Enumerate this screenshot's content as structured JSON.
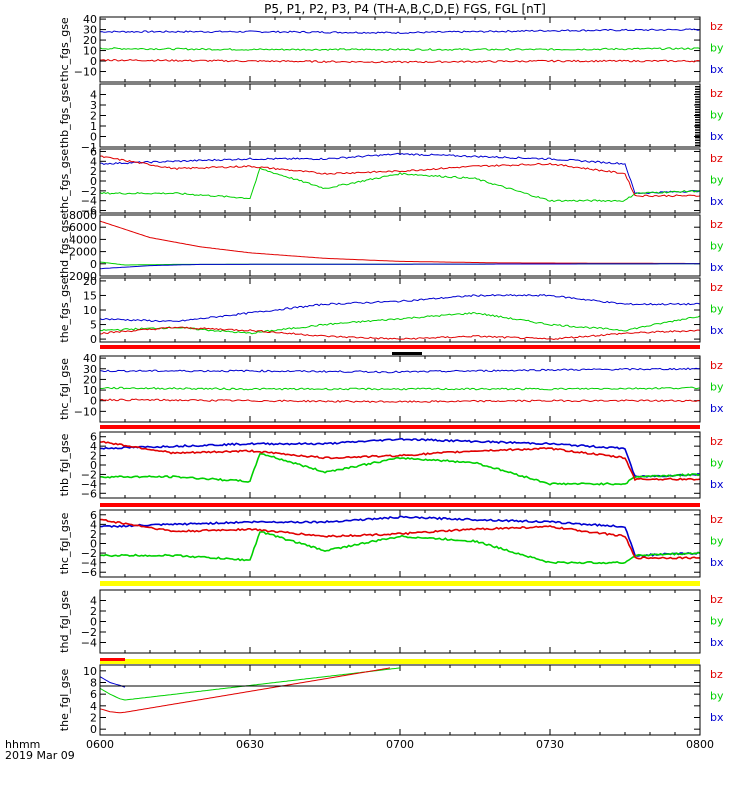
{
  "title": "P5, P1, P2, P3, P4 (TH-A,B,C,D,E) FGS, FGL [nT]",
  "footer": {
    "label1": "hhmm",
    "label2": "2019 Mar 09"
  },
  "x_ticks": [
    "0600",
    "0630",
    "0700",
    "0730",
    "0800"
  ],
  "colors": {
    "bz": "#e00000",
    "by": "#00d000",
    "bx": "#0000d0",
    "status_red": "#ff0000",
    "status_yellow": "#ffff00",
    "status_black": "#000000"
  },
  "chart_data": [
    {
      "type": "line",
      "panel": "thc_fgs_gse",
      "ylabel": "thc_fgs_gse",
      "xlim": [
        "06:00",
        "08:00"
      ],
      "ylim": [
        -20,
        42
      ],
      "yticks": [
        "40",
        "30",
        "20",
        "10",
        "0",
        "−10"
      ],
      "ytick_values": [
        40,
        30,
        20,
        10,
        0,
        -10
      ],
      "legend": [
        "bz",
        "by",
        "bx"
      ],
      "series": [
        {
          "name": "bx",
          "x": [
            "06:00",
            "06:30",
            "07:00",
            "07:30",
            "08:00"
          ],
          "y": [
            28,
            28,
            27,
            29,
            30
          ]
        },
        {
          "name": "by",
          "x": [
            "06:00",
            "06:30",
            "07:00",
            "07:30",
            "08:00"
          ],
          "y": [
            12,
            11,
            11,
            11,
            12
          ]
        },
        {
          "name": "bz",
          "x": [
            "06:00",
            "06:30",
            "07:00",
            "07:30",
            "08:00"
          ],
          "y": [
            1,
            0,
            -1,
            0,
            0
          ]
        }
      ]
    },
    {
      "type": "line",
      "panel": "thb_fgs_gse",
      "ylabel": "thb_fgs_gse",
      "xlim": [
        "06:00",
        "08:00"
      ],
      "ylim": [
        -1,
        5
      ],
      "yticks": [
        "4",
        "3",
        "2",
        "1",
        "0",
        "−1"
      ],
      "ytick_values": [
        4,
        3,
        2,
        1,
        0,
        -1
      ],
      "legend": [
        "bz",
        "by",
        "bx"
      ],
      "series": []
    },
    {
      "type": "line",
      "panel": "thc_fgs_gse",
      "ylabel": "thc_fgs_gse",
      "xlim": [
        "06:00",
        "08:00"
      ],
      "ylim": [
        -6.5,
        6.5
      ],
      "yticks": [
        "6",
        "4",
        "2",
        "0",
        "−2",
        "−4",
        "−6"
      ],
      "ytick_values": [
        6,
        4,
        2,
        0,
        -2,
        -4,
        -6
      ],
      "legend": [
        "bz",
        "by",
        "bx"
      ],
      "series": [
        {
          "name": "bx",
          "x": [
            "06:00",
            "06:15",
            "06:30",
            "06:45",
            "07:00",
            "07:15",
            "07:30",
            "07:45",
            "07:47",
            "08:00"
          ],
          "y": [
            3.5,
            4.0,
            4.5,
            4.5,
            5.5,
            5.0,
            4.5,
            3.5,
            -2.5,
            -2.0
          ]
        },
        {
          "name": "by",
          "x": [
            "06:00",
            "06:15",
            "06:30",
            "06:32",
            "06:45",
            "07:00",
            "07:15",
            "07:30",
            "07:45",
            "07:47",
            "08:00"
          ],
          "y": [
            -2.5,
            -2.5,
            -3.5,
            2.5,
            -1.5,
            1.5,
            0.5,
            -4.0,
            -4.0,
            -2.5,
            -2.0
          ]
        },
        {
          "name": "bz",
          "x": [
            "06:00",
            "06:15",
            "06:30",
            "06:45",
            "07:00",
            "07:15",
            "07:30",
            "07:45",
            "07:47",
            "08:00"
          ],
          "y": [
            5.0,
            2.5,
            3.0,
            1.5,
            2.0,
            3.0,
            3.5,
            1.5,
            -3.0,
            -3.0
          ]
        }
      ]
    },
    {
      "type": "line",
      "panel": "thd_fgs_gse",
      "ylabel": "thd_fgs_gse",
      "xlim": [
        "06:00",
        "08:00"
      ],
      "ylim": [
        -2000,
        8000
      ],
      "yticks": [
        "8000",
        "6000",
        "4000",
        "2000",
        "0",
        "−2000"
      ],
      "ytick_values": [
        8000,
        6000,
        4000,
        2000,
        0,
        -2000
      ],
      "legend": [
        "bz",
        "by",
        "bx"
      ],
      "series": [
        {
          "name": "bz",
          "x": [
            "06:00",
            "06:10",
            "06:20",
            "06:30",
            "06:45",
            "07:00",
            "07:20",
            "08:00"
          ],
          "y": [
            7000,
            4300,
            2800,
            1800,
            900,
            400,
            150,
            50
          ]
        },
        {
          "name": "by",
          "x": [
            "06:00",
            "06:05",
            "06:15",
            "08:00"
          ],
          "y": [
            300,
            -200,
            -100,
            0
          ]
        },
        {
          "name": "bx",
          "x": [
            "06:00",
            "06:10",
            "06:20",
            "08:00"
          ],
          "y": [
            -800,
            -300,
            -100,
            0
          ]
        }
      ]
    },
    {
      "type": "line",
      "panel": "the_fgs_gse",
      "ylabel": "the_fgs_gse",
      "xlim": [
        "06:00",
        "08:00"
      ],
      "ylim": [
        -1,
        21
      ],
      "yticks": [
        "20",
        "15",
        "10",
        "5",
        "0"
      ],
      "ytick_values": [
        20,
        15,
        10,
        5,
        0
      ],
      "legend": [
        "bz",
        "by",
        "bx"
      ],
      "series": [
        {
          "name": "bx",
          "x": [
            "06:00",
            "06:15",
            "06:30",
            "06:45",
            "07:00",
            "07:15",
            "07:30",
            "07:45",
            "08:00"
          ],
          "y": [
            7,
            6,
            9,
            12,
            13,
            15,
            15,
            12,
            12
          ]
        },
        {
          "name": "by",
          "x": [
            "06:00",
            "06:15",
            "06:30",
            "06:45",
            "07:00",
            "07:15",
            "07:30",
            "07:45",
            "08:00"
          ],
          "y": [
            3,
            4,
            2,
            5,
            7,
            9,
            5,
            3,
            8
          ]
        },
        {
          "name": "bz",
          "x": [
            "06:00",
            "06:15",
            "06:30",
            "06:45",
            "07:00",
            "07:15",
            "07:30",
            "07:45",
            "08:00"
          ],
          "y": [
            2,
            4,
            3,
            1,
            0,
            1,
            0,
            2,
            3
          ]
        }
      ]
    },
    {
      "type": "line",
      "panel": "thc_fgl_gse",
      "ylabel": "thc_fgl_gse",
      "xlim": [
        "06:00",
        "08:00"
      ],
      "ylim": [
        -20,
        42
      ],
      "yticks": [
        "40",
        "30",
        "20",
        "10",
        "0",
        "−10"
      ],
      "ytick_values": [
        40,
        30,
        20,
        10,
        0,
        -10
      ],
      "legend": [
        "bz",
        "by",
        "bx"
      ],
      "series": [
        {
          "name": "bx",
          "x": [
            "06:00",
            "06:30",
            "07:00",
            "07:30",
            "08:00"
          ],
          "y": [
            28,
            28,
            27,
            29,
            30
          ]
        },
        {
          "name": "by",
          "x": [
            "06:00",
            "06:30",
            "07:00",
            "07:30",
            "08:00"
          ],
          "y": [
            12,
            11,
            11,
            11,
            12
          ]
        },
        {
          "name": "bz",
          "x": [
            "06:00",
            "06:30",
            "07:00",
            "07:30",
            "08:00"
          ],
          "y": [
            1,
            0,
            -1,
            0,
            0
          ]
        }
      ]
    },
    {
      "type": "line",
      "panel": "thb_fgl_gse",
      "ylabel": "thb_fgl_gse",
      "xlim": [
        "06:00",
        "08:00"
      ],
      "ylim": [
        -7,
        7
      ],
      "yticks": [
        "6",
        "4",
        "2",
        "0",
        "−2",
        "−4",
        "−6"
      ],
      "ytick_values": [
        6,
        4,
        2,
        0,
        -2,
        -4,
        -6
      ],
      "legend": [
        "bz",
        "by",
        "bx"
      ],
      "series": [
        {
          "name": "bx",
          "x": [
            "06:00",
            "06:15",
            "06:30",
            "06:45",
            "07:00",
            "07:15",
            "07:30",
            "07:45",
            "07:47",
            "08:00"
          ],
          "y": [
            3.5,
            4.0,
            4.5,
            4.5,
            5.5,
            5.0,
            4.5,
            3.5,
            -2.5,
            -2.0
          ]
        },
        {
          "name": "by",
          "x": [
            "06:00",
            "06:15",
            "06:30",
            "06:32",
            "06:45",
            "07:00",
            "07:15",
            "07:30",
            "07:45",
            "07:47",
            "08:00"
          ],
          "y": [
            -2.5,
            -2.5,
            -3.5,
            2.5,
            -1.5,
            1.5,
            0.5,
            -4.0,
            -4.0,
            -2.5,
            -2.0
          ]
        },
        {
          "name": "bz",
          "x": [
            "06:00",
            "06:15",
            "06:30",
            "06:45",
            "07:00",
            "07:15",
            "07:30",
            "07:45",
            "07:47",
            "08:00"
          ],
          "y": [
            5.0,
            2.5,
            3.0,
            1.5,
            2.0,
            3.0,
            3.5,
            1.5,
            -3.0,
            -3.0
          ]
        }
      ]
    },
    {
      "type": "line",
      "panel": "thc_fgl_gse",
      "ylabel": "thc_fgl_gse",
      "xlim": [
        "06:00",
        "08:00"
      ],
      "ylim": [
        -7,
        7
      ],
      "yticks": [
        "6",
        "4",
        "2",
        "0",
        "−2",
        "−4",
        "−6"
      ],
      "ytick_values": [
        6,
        4,
        2,
        0,
        -2,
        -4,
        -6
      ],
      "legend": [
        "bz",
        "by",
        "bx"
      ],
      "series": [
        {
          "name": "bx",
          "x": [
            "06:00",
            "06:15",
            "06:30",
            "06:45",
            "07:00",
            "07:15",
            "07:30",
            "07:45",
            "07:47",
            "08:00"
          ],
          "y": [
            3.5,
            4.0,
            4.5,
            4.5,
            5.5,
            5.0,
            4.5,
            3.5,
            -2.5,
            -2.0
          ]
        },
        {
          "name": "by",
          "x": [
            "06:00",
            "06:15",
            "06:30",
            "06:32",
            "06:45",
            "07:00",
            "07:15",
            "07:30",
            "07:45",
            "07:47",
            "08:00"
          ],
          "y": [
            -2.5,
            -2.5,
            -3.5,
            2.5,
            -1.5,
            1.5,
            0.5,
            -4.0,
            -4.0,
            -2.5,
            -2.0
          ]
        },
        {
          "name": "bz",
          "x": [
            "06:00",
            "06:15",
            "06:30",
            "06:45",
            "07:00",
            "07:15",
            "07:30",
            "07:45",
            "07:47",
            "08:00"
          ],
          "y": [
            5.0,
            2.5,
            3.0,
            1.5,
            2.0,
            3.0,
            3.5,
            1.5,
            -3.0,
            -3.0
          ]
        }
      ]
    },
    {
      "type": "line",
      "panel": "thd_fgl_gse",
      "ylabel": "thd_fgl_gse",
      "xlim": [
        "06:00",
        "08:00"
      ],
      "ylim": [
        -6,
        6
      ],
      "yticks": [
        "4",
        "2",
        "0",
        "−2",
        "−4"
      ],
      "ytick_values": [
        4,
        2,
        0,
        -2,
        -4
      ],
      "legend": [
        "bz",
        "by",
        "bx"
      ],
      "series": []
    },
    {
      "type": "line",
      "panel": "the_fgl_gse",
      "ylabel": "the_fgl_gse",
      "xlim": [
        "06:00",
        "08:00"
      ],
      "ylim": [
        -1,
        11
      ],
      "yticks": [
        "10",
        "8",
        "6",
        "4",
        "2",
        "0"
      ],
      "ytick_values": [
        10,
        8,
        6,
        4,
        2,
        0
      ],
      "legend": [
        "bz",
        "by",
        "bx"
      ],
      "series": [
        {
          "name": "bx",
          "x": [
            "06:00",
            "06:02",
            "06:04",
            "06:05"
          ],
          "y": [
            9,
            8,
            7.5,
            7.2
          ]
        },
        {
          "name": "by",
          "x": [
            "06:00",
            "06:02",
            "06:04",
            "06:05",
            "07:00"
          ],
          "y": [
            7,
            6,
            5.2,
            5,
            10.5
          ]
        },
        {
          "name": "bz",
          "x": [
            "06:00",
            "06:02",
            "06:04",
            "06:05",
            "06:58"
          ],
          "y": [
            3.5,
            3,
            2.8,
            2.9,
            10.5
          ]
        }
      ]
    }
  ]
}
